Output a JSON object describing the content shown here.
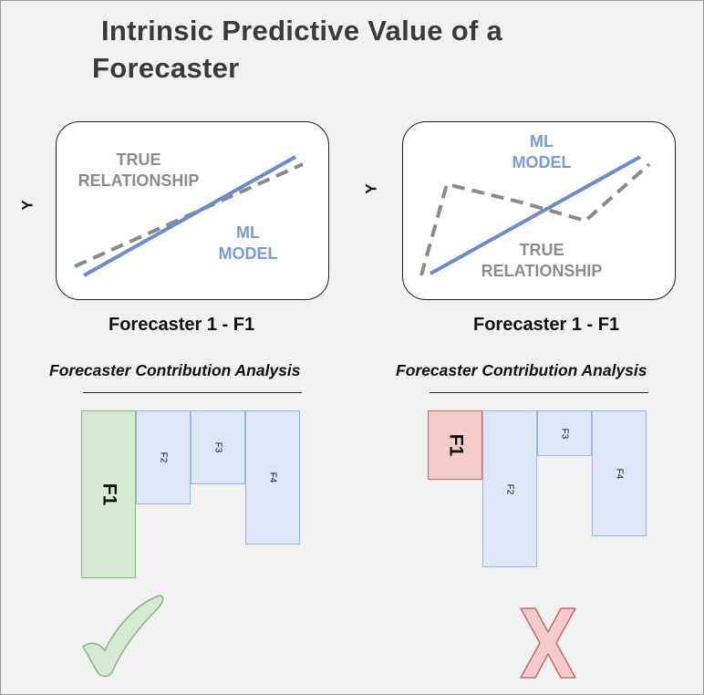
{
  "title": {
    "line1": "Intrinsic Predictive Value of a",
    "line2": "Forecaster"
  },
  "left_panel": {
    "axis_label": "Y",
    "true_label_1": "TRUE",
    "true_label_2": "RELATIONSHIP",
    "ml_label_1": "ML",
    "ml_label_2": "MODEL",
    "caption": "Forecaster 1 - F1",
    "analysis_title": "Forecaster Contribution Analysis",
    "bars": [
      {
        "name": "F1",
        "value": 1.0
      },
      {
        "name": "F2",
        "value": 0.56
      },
      {
        "name": "F3",
        "value": 0.44
      },
      {
        "name": "F4",
        "value": 0.8
      }
    ],
    "verdict_icon": "check-mark-icon"
  },
  "right_panel": {
    "axis_label": "Y",
    "ml_label_1": "ML",
    "ml_label_2": "MODEL",
    "true_label_1": "TRUE",
    "true_label_2": "RELATIONSHIP",
    "caption": "Forecaster 1 - F1",
    "analysis_title": "Forecaster Contribution Analysis",
    "bars": [
      {
        "name": "F1",
        "value": 0.44
      },
      {
        "name": "F2",
        "value": 1.0
      },
      {
        "name": "F3",
        "value": 0.29
      },
      {
        "name": "F4",
        "value": 0.8
      }
    ],
    "verdict_icon": "cross-mark-icon"
  },
  "colors": {
    "ml_line": "#6b8cc7",
    "true_line": "#8a8a8a",
    "good": "#d6e9d2",
    "bad": "#f4cbcb",
    "neutral": "#dde7f8"
  }
}
